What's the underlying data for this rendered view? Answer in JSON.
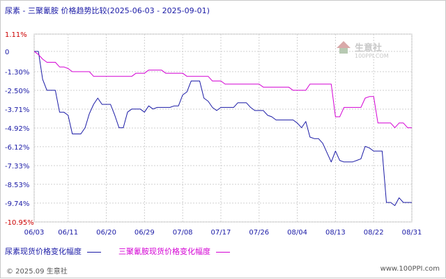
{
  "chart_data": {
    "type": "line",
    "title": "尿素 - 三聚氰胺 价格趋势比较(2025-06-03 - 2025-09-01)",
    "yticks": [
      "1.11%",
      "0",
      "-1.30%",
      "-2.50%",
      "-3.71%",
      "-4.92%",
      "-6.12%",
      "-7.33%",
      "-8.53%",
      "-9.74%",
      "-10.95%"
    ],
    "ytick_values": [
      1.11,
      0,
      -1.3,
      -2.5,
      -3.71,
      -4.92,
      -6.12,
      -7.33,
      -8.53,
      -9.74,
      -10.95
    ],
    "ylim": [
      -10.95,
      1.11
    ],
    "xticks": [
      "06/03",
      "06/11",
      "06/20",
      "06/29",
      "07/08",
      "07/17",
      "07/26",
      "08/04",
      "08/13",
      "08/22",
      "08/31"
    ],
    "xtick_days": [
      0,
      8,
      17,
      26,
      35,
      44,
      53,
      62,
      71,
      80,
      89
    ],
    "xlim_days": [
      0,
      89
    ],
    "grid": true,
    "legend_position": "bottom",
    "series": [
      {
        "name": "尿素现货价格变化幅度",
        "color": "#1a1aa6",
        "points": [
          [
            0,
            0
          ],
          [
            1,
            0
          ],
          [
            2,
            -1.8
          ],
          [
            3,
            -2.5
          ],
          [
            4,
            -2.5
          ],
          [
            5,
            -2.5
          ],
          [
            6,
            -3.9
          ],
          [
            7,
            -3.9
          ],
          [
            8,
            -4.1
          ],
          [
            9,
            -5.3
          ],
          [
            10,
            -5.3
          ],
          [
            11,
            -5.3
          ],
          [
            12,
            -4.9
          ],
          [
            13,
            -4.0
          ],
          [
            14,
            -3.4
          ],
          [
            15,
            -3.0
          ],
          [
            16,
            -3.4
          ],
          [
            17,
            -3.4
          ],
          [
            18,
            -3.4
          ],
          [
            19,
            -4.1
          ],
          [
            20,
            -4.9
          ],
          [
            21,
            -4.9
          ],
          [
            22,
            -3.9
          ],
          [
            23,
            -3.7
          ],
          [
            24,
            -3.7
          ],
          [
            25,
            -3.7
          ],
          [
            26,
            -3.9
          ],
          [
            27,
            -3.5
          ],
          [
            28,
            -3.7
          ],
          [
            29,
            -3.6
          ],
          [
            30,
            -3.6
          ],
          [
            31,
            -3.6
          ],
          [
            32,
            -3.6
          ],
          [
            33,
            -3.5
          ],
          [
            34,
            -3.5
          ],
          [
            35,
            -2.8
          ],
          [
            36,
            -2.6
          ],
          [
            37,
            -1.9
          ],
          [
            38,
            -1.9
          ],
          [
            39,
            -1.9
          ],
          [
            40,
            -3.0
          ],
          [
            41,
            -3.2
          ],
          [
            42,
            -3.6
          ],
          [
            43,
            -3.8
          ],
          [
            44,
            -3.6
          ],
          [
            45,
            -3.6
          ],
          [
            46,
            -3.6
          ],
          [
            47,
            -3.6
          ],
          [
            48,
            -3.3
          ],
          [
            49,
            -3.3
          ],
          [
            50,
            -3.3
          ],
          [
            51,
            -3.6
          ],
          [
            52,
            -3.8
          ],
          [
            53,
            -3.8
          ],
          [
            54,
            -3.8
          ],
          [
            55,
            -4.1
          ],
          [
            56,
            -4.2
          ],
          [
            57,
            -4.4
          ],
          [
            58,
            -4.4
          ],
          [
            59,
            -4.4
          ],
          [
            60,
            -4.4
          ],
          [
            61,
            -4.4
          ],
          [
            62,
            -4.6
          ],
          [
            63,
            -4.9
          ],
          [
            64,
            -4.5
          ],
          [
            65,
            -5.5
          ],
          [
            66,
            -5.6
          ],
          [
            67,
            -5.6
          ],
          [
            68,
            -5.9
          ],
          [
            69,
            -6.5
          ],
          [
            70,
            -7.1
          ],
          [
            71,
            -6.4
          ],
          [
            72,
            -7.0
          ],
          [
            73,
            -7.1
          ],
          [
            74,
            -7.1
          ],
          [
            75,
            -7.1
          ],
          [
            76,
            -7.0
          ],
          [
            77,
            -6.9
          ],
          [
            78,
            -6.1
          ],
          [
            79,
            -6.2
          ],
          [
            80,
            -6.4
          ],
          [
            81,
            -6.4
          ],
          [
            82,
            -6.4
          ],
          [
            83,
            -9.7
          ],
          [
            84,
            -9.7
          ],
          [
            85,
            -9.9
          ],
          [
            86,
            -9.4
          ],
          [
            87,
            -9.7
          ],
          [
            88,
            -9.7
          ],
          [
            89,
            -9.7
          ]
        ]
      },
      {
        "name": "三聚氰胺现货价格变化幅度",
        "color": "#d400d4",
        "points": [
          [
            0,
            0
          ],
          [
            1,
            -0.2
          ],
          [
            2,
            -0.5
          ],
          [
            3,
            -0.7
          ],
          [
            4,
            -0.7
          ],
          [
            5,
            -0.7
          ],
          [
            6,
            -1.0
          ],
          [
            7,
            -1.0
          ],
          [
            8,
            -1.1
          ],
          [
            9,
            -1.3
          ],
          [
            10,
            -1.3
          ],
          [
            11,
            -1.3
          ],
          [
            12,
            -1.3
          ],
          [
            13,
            -1.3
          ],
          [
            14,
            -1.6
          ],
          [
            15,
            -1.6
          ],
          [
            16,
            -1.6
          ],
          [
            17,
            -1.6
          ],
          [
            18,
            -1.6
          ],
          [
            19,
            -1.6
          ],
          [
            20,
            -1.6
          ],
          [
            21,
            -1.6
          ],
          [
            22,
            -1.6
          ],
          [
            23,
            -1.6
          ],
          [
            24,
            -1.4
          ],
          [
            25,
            -1.4
          ],
          [
            26,
            -1.4
          ],
          [
            27,
            -1.2
          ],
          [
            28,
            -1.2
          ],
          [
            29,
            -1.2
          ],
          [
            30,
            -1.2
          ],
          [
            31,
            -1.4
          ],
          [
            32,
            -1.4
          ],
          [
            33,
            -1.4
          ],
          [
            34,
            -1.4
          ],
          [
            35,
            -1.4
          ],
          [
            36,
            -1.6
          ],
          [
            37,
            -1.6
          ],
          [
            38,
            -1.6
          ],
          [
            39,
            -1.6
          ],
          [
            40,
            -1.6
          ],
          [
            41,
            -1.6
          ],
          [
            42,
            -1.9
          ],
          [
            43,
            -1.9
          ],
          [
            44,
            -1.9
          ],
          [
            45,
            -2.1
          ],
          [
            46,
            -2.1
          ],
          [
            47,
            -2.1
          ],
          [
            48,
            -2.1
          ],
          [
            49,
            -2.1
          ],
          [
            50,
            -2.1
          ],
          [
            51,
            -2.1
          ],
          [
            52,
            -2.1
          ],
          [
            53,
            -2.1
          ],
          [
            54,
            -2.3
          ],
          [
            55,
            -2.3
          ],
          [
            56,
            -2.3
          ],
          [
            57,
            -2.3
          ],
          [
            58,
            -2.3
          ],
          [
            59,
            -2.3
          ],
          [
            60,
            -2.3
          ],
          [
            61,
            -2.5
          ],
          [
            62,
            -2.5
          ],
          [
            63,
            -2.5
          ],
          [
            64,
            -2.5
          ],
          [
            65,
            -2.1
          ],
          [
            66,
            -2.1
          ],
          [
            67,
            -2.1
          ],
          [
            68,
            -2.1
          ],
          [
            69,
            -2.1
          ],
          [
            70,
            -2.1
          ],
          [
            71,
            -4.2
          ],
          [
            72,
            -4.2
          ],
          [
            73,
            -3.6
          ],
          [
            74,
            -3.6
          ],
          [
            75,
            -3.6
          ],
          [
            76,
            -3.6
          ],
          [
            77,
            -3.6
          ],
          [
            78,
            -3.0
          ],
          [
            79,
            -2.9
          ],
          [
            80,
            -2.9
          ],
          [
            81,
            -4.6
          ],
          [
            82,
            -4.6
          ],
          [
            83,
            -4.6
          ],
          [
            84,
            -4.6
          ],
          [
            85,
            -4.9
          ],
          [
            86,
            -4.6
          ],
          [
            87,
            -4.6
          ],
          [
            88,
            -4.9
          ],
          [
            89,
            -4.9
          ]
        ]
      }
    ]
  },
  "legend": {
    "series1_label": "尿素现货价格变化幅度",
    "series2_label": "三聚氰胺现货价格变化幅度"
  },
  "watermark": {
    "name": "生意社",
    "url": "100PPI.COM"
  },
  "footer": {
    "copyright": "© 2025.09 生意社",
    "site": "www.100PPI.com"
  },
  "colors": {
    "series1": "#1a1aa6",
    "series2": "#d400d4",
    "ytick_red": "#cc0000",
    "axis_text": "#1a1aa6",
    "grid": "#cfcfcf"
  }
}
